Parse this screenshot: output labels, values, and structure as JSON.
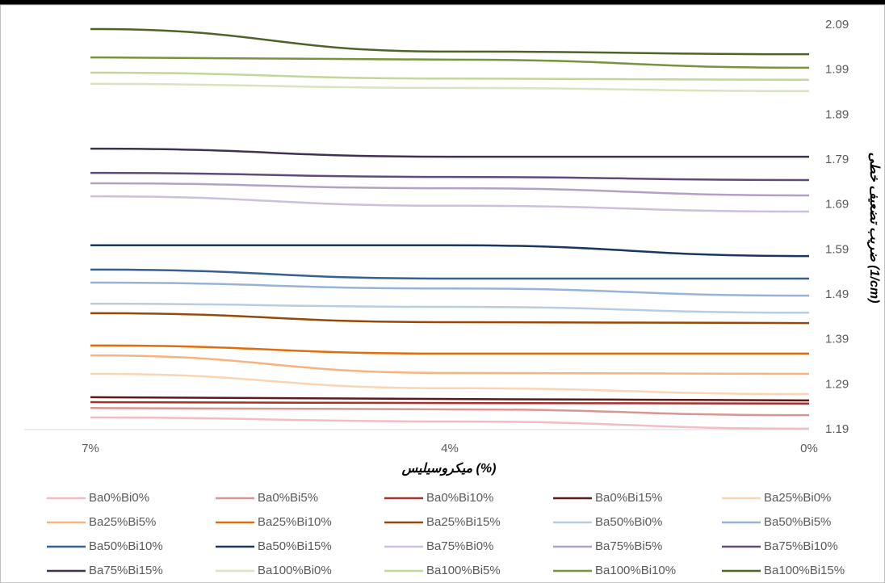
{
  "chart_data": {
    "type": "line",
    "x_label": "میکروسیلیس (%)",
    "y_label": "ضریب تضعیف خطی (1/cm)",
    "categories": [
      "7%",
      "4%",
      "0%"
    ],
    "ylim": [
      1.19,
      2.09
    ],
    "yticks": [
      1.19,
      1.29,
      1.39,
      1.49,
      1.59,
      1.69,
      1.79,
      1.89,
      1.99,
      2.09
    ],
    "y_axis_side": "right",
    "grid": false,
    "legend": "bottom",
    "series": [
      {
        "name": "Ba0%Bi0%",
        "color": "#f2bcc4",
        "values": [
          1.217,
          1.208,
          1.192
        ]
      },
      {
        "name": "Ba0%Bi5%",
        "color": "#d99594",
        "values": [
          1.238,
          1.235,
          1.222
        ]
      },
      {
        "name": "Ba0%Bi10%",
        "color": "#a5302e",
        "values": [
          1.251,
          1.249,
          1.248
        ]
      },
      {
        "name": "Ba0%Bi15%",
        "color": "#5c1a18",
        "values": [
          1.262,
          1.258,
          1.255
        ]
      },
      {
        "name": "Ba25%Bi0%",
        "color": "#fbd4b4",
        "values": [
          1.314,
          1.282,
          1.269
        ]
      },
      {
        "name": "Ba25%Bi5%",
        "color": "#f9b27d",
        "values": [
          1.355,
          1.316,
          1.314
        ]
      },
      {
        "name": "Ba25%Bi10%",
        "color": "#e36c0a",
        "values": [
          1.377,
          1.359,
          1.359
        ]
      },
      {
        "name": "Ba25%Bi15%",
        "color": "#984806",
        "values": [
          1.449,
          1.429,
          1.427
        ]
      },
      {
        "name": "Ba50%Bi0%",
        "color": "#b8cce4",
        "values": [
          1.47,
          1.463,
          1.45
        ]
      },
      {
        "name": "Ba50%Bi5%",
        "color": "#95b3d7",
        "values": [
          1.517,
          1.504,
          1.488
        ]
      },
      {
        "name": "Ba50%Bi10%",
        "color": "#366092",
        "values": [
          1.546,
          1.526,
          1.526
        ]
      },
      {
        "name": "Ba50%Bi15%",
        "color": "#17375e",
        "values": [
          1.6,
          1.6,
          1.576
        ]
      },
      {
        "name": "Ba75%Bi0%",
        "color": "#ccc0da",
        "values": [
          1.709,
          1.688,
          1.675
        ]
      },
      {
        "name": "Ba75%Bi5%",
        "color": "#b2a1c7",
        "values": [
          1.738,
          1.727,
          1.711
        ]
      },
      {
        "name": "Ba75%Bi10%",
        "color": "#604a7b",
        "values": [
          1.761,
          1.752,
          1.745
        ]
      },
      {
        "name": "Ba75%Bi15%",
        "color": "#3f3151",
        "values": [
          1.815,
          1.797,
          1.797
        ]
      },
      {
        "name": "Ba100%Bi0%",
        "color": "#d7e4bd",
        "values": [
          1.959,
          1.95,
          1.943
        ]
      },
      {
        "name": "Ba100%Bi5%",
        "color": "#c3d69b",
        "values": [
          1.984,
          1.971,
          1.968
        ]
      },
      {
        "name": "Ba100%Bi10%",
        "color": "#77933c",
        "values": [
          2.018,
          2.013,
          1.995
        ]
      },
      {
        "name": "Ba100%Bi15%",
        "color": "#4f6228",
        "values": [
          2.081,
          2.031,
          2.025
        ]
      }
    ]
  }
}
